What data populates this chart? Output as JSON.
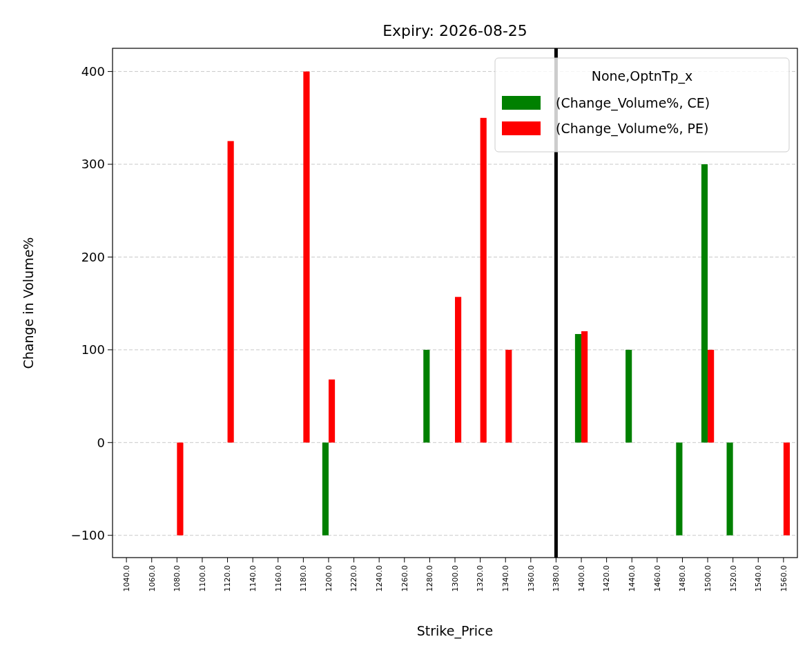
{
  "chart_data": {
    "type": "bar",
    "title": "Expiry: 2026-08-25",
    "xlabel": "Strike_Price",
    "ylabel": "Change in Volume%",
    "legend_title": "None,OptnTp_x",
    "categories": [
      "1040.0",
      "1060.0",
      "1080.0",
      "1100.0",
      "1120.0",
      "1140.0",
      "1160.0",
      "1180.0",
      "1200.0",
      "1220.0",
      "1240.0",
      "1260.0",
      "1280.0",
      "1300.0",
      "1320.0",
      "1340.0",
      "1360.0",
      "1380.0",
      "1400.0",
      "1420.0",
      "1440.0",
      "1460.0",
      "1480.0",
      "1500.0",
      "1520.0",
      "1540.0",
      "1560.0"
    ],
    "series": [
      {
        "name": "(Change_Volume%, CE)",
        "color": "#008000",
        "values": [
          null,
          null,
          null,
          null,
          null,
          null,
          null,
          null,
          -100,
          null,
          null,
          null,
          100,
          null,
          null,
          null,
          null,
          null,
          117,
          null,
          100,
          null,
          -100,
          300,
          -100,
          null,
          null
        ]
      },
      {
        "name": "(Change_Volume%, PE)",
        "color": "#ff0000",
        "values": [
          null,
          null,
          -100,
          null,
          325,
          null,
          null,
          400,
          68,
          null,
          null,
          null,
          null,
          157,
          350,
          100,
          null,
          null,
          120,
          null,
          null,
          null,
          null,
          100,
          null,
          null,
          -100
        ]
      }
    ],
    "ylim": [
      -124,
      425
    ],
    "yticks": [
      {
        "value": -100,
        "label": "−100"
      },
      0,
      100,
      200,
      300,
      400
    ],
    "grid": "y",
    "legend": "top right",
    "ref_lines": [
      {
        "axis": "x",
        "value": "1380.0",
        "color": "#000000"
      }
    ]
  }
}
